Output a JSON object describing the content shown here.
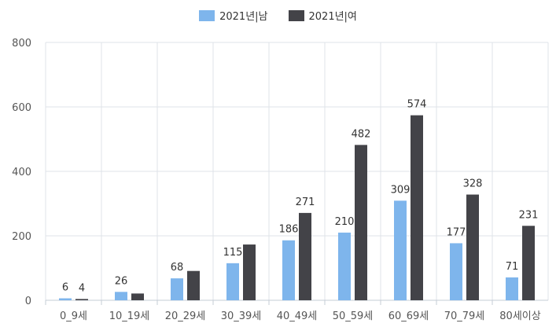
{
  "chart_data": {
    "type": "bar",
    "categories": [
      "0_9세",
      "10_19세",
      "20_29세",
      "30_39세",
      "40_49세",
      "50_59세",
      "60_69세",
      "70_79세",
      "80세이상"
    ],
    "series": [
      {
        "name": "2021년|남",
        "color": "#7eb5ec",
        "values": [
          6,
          26,
          68,
          115,
          186,
          210,
          309,
          177,
          71
        ],
        "labels": [
          "6",
          "26",
          "68",
          "115",
          "186",
          "210",
          "309",
          "177",
          "71"
        ]
      },
      {
        "name": "2021년|여",
        "color": "#434348",
        "values": [
          4,
          21,
          91,
          173,
          271,
          482,
          574,
          328,
          231
        ],
        "labels": [
          "4",
          "",
          "",
          "",
          "271",
          "482",
          "574",
          "328",
          "231"
        ]
      }
    ],
    "ylim": [
      0,
      800
    ],
    "yticks": [
      0,
      200,
      400,
      600,
      800
    ],
    "grid": true,
    "legend": "top-center"
  }
}
